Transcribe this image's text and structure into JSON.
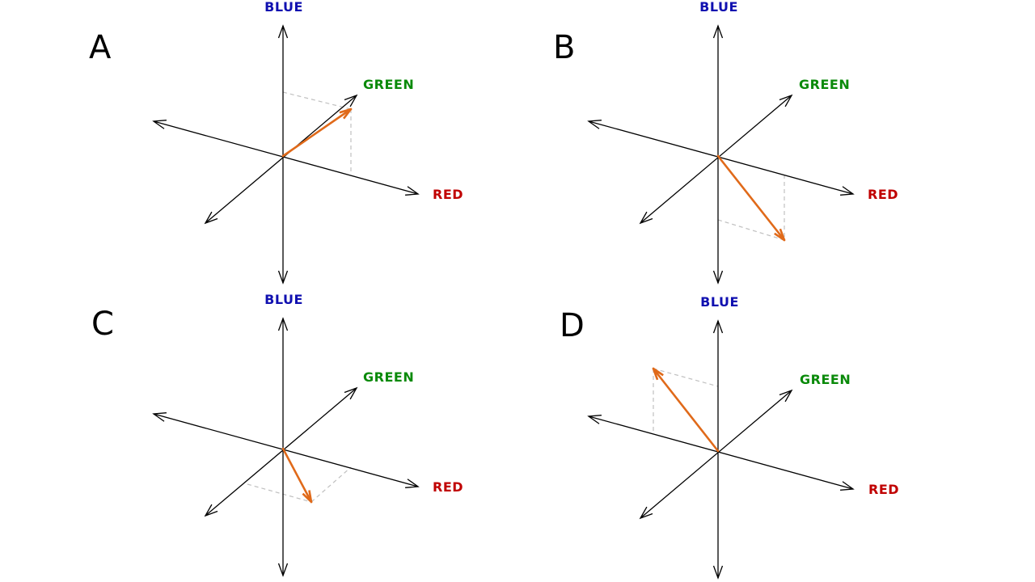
{
  "colors": {
    "axis": "#000000",
    "vector": "#e06a1a",
    "projection": "#c0c0c0",
    "blue": "#1010b0",
    "green": "#0a8a0a",
    "red": "#c00000"
  },
  "axis_labels": {
    "blue": "BLUE",
    "green": "GREEN",
    "red": "RED"
  },
  "panels": [
    {
      "letter": "A"
    },
    {
      "letter": "B"
    },
    {
      "letter": "C"
    },
    {
      "letter": "D"
    }
  ]
}
